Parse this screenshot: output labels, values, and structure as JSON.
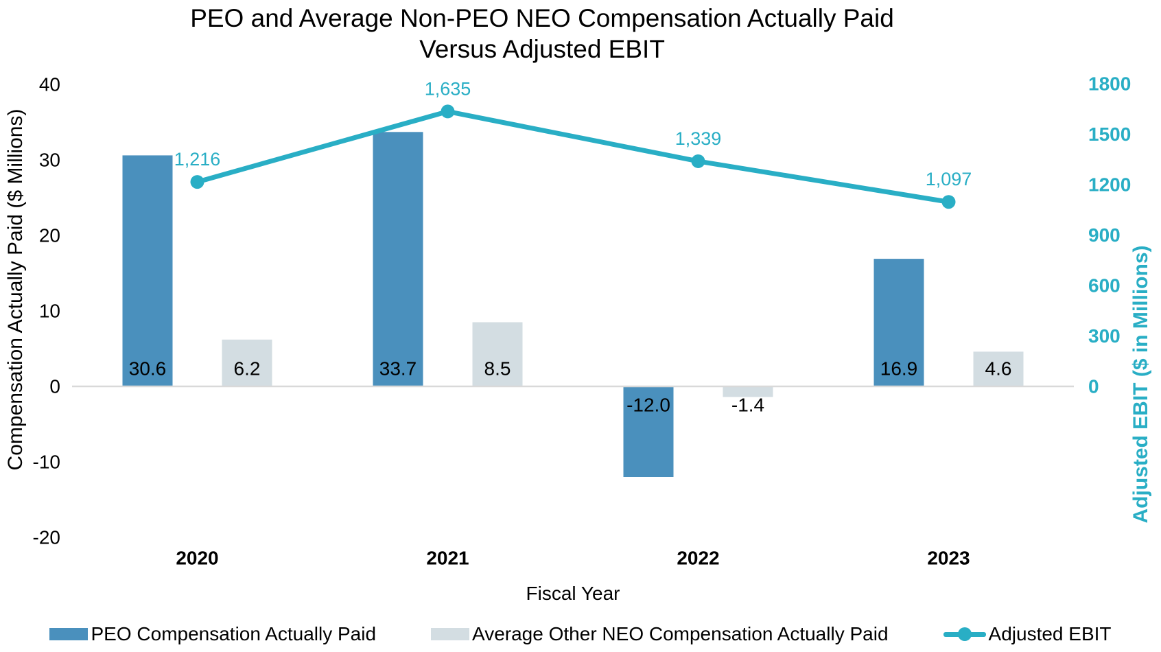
{
  "title": "PEO and Average Non-PEO NEO Compensation Actually Paid\nVersus Adjusted EBIT",
  "colors": {
    "peo_bar": "#4a90bd",
    "neo_bar": "#d3dde2",
    "ebit_line": "#29aec5",
    "axis_baseline": "#d9d9d9",
    "text": "#000000"
  },
  "chart_data": {
    "type": "combo-bar-line",
    "categories": [
      "2020",
      "2021",
      "2022",
      "2023"
    ],
    "series": [
      {
        "name": "PEO Compensation Actually Paid",
        "type": "bar",
        "axis": "left",
        "color": "#4a90bd",
        "values": [
          30.6,
          33.7,
          -12.0,
          16.9
        ],
        "data_labels": [
          "30.6",
          "33.7",
          "-12.0",
          "16.9"
        ]
      },
      {
        "name": "Average Other NEO Compensation Actually Paid",
        "type": "bar",
        "axis": "left",
        "color": "#d3dde2",
        "values": [
          6.2,
          8.5,
          -1.4,
          4.6
        ],
        "data_labels": [
          "6.2",
          "8.5",
          "-1.4",
          "4.6"
        ]
      },
      {
        "name": "Adjusted EBIT",
        "type": "line",
        "axis": "right",
        "color": "#29aec5",
        "values": [
          1216,
          1635,
          1339,
          1097
        ],
        "data_labels": [
          "1,216",
          "1,635",
          "1,339",
          "1,097"
        ]
      }
    ],
    "x_axis": {
      "title": "Fiscal Year",
      "tick_labels": [
        "2020",
        "2021",
        "2022",
        "2023"
      ]
    },
    "left_axis": {
      "title": "Compensation Actually Paid ($ Millions)",
      "min": -20,
      "max": 40,
      "tick_interval": 10,
      "ticks": [
        40,
        30,
        20,
        10,
        0,
        -10,
        -20
      ]
    },
    "right_axis": {
      "title": "Adjusted EBIT ($ in Millions)",
      "min": 0,
      "max": 1800,
      "tick_interval": 300,
      "ticks": [
        1800,
        1500,
        1200,
        900,
        600,
        300,
        0
      ]
    },
    "legend_position": "bottom",
    "gridlines": "none"
  }
}
